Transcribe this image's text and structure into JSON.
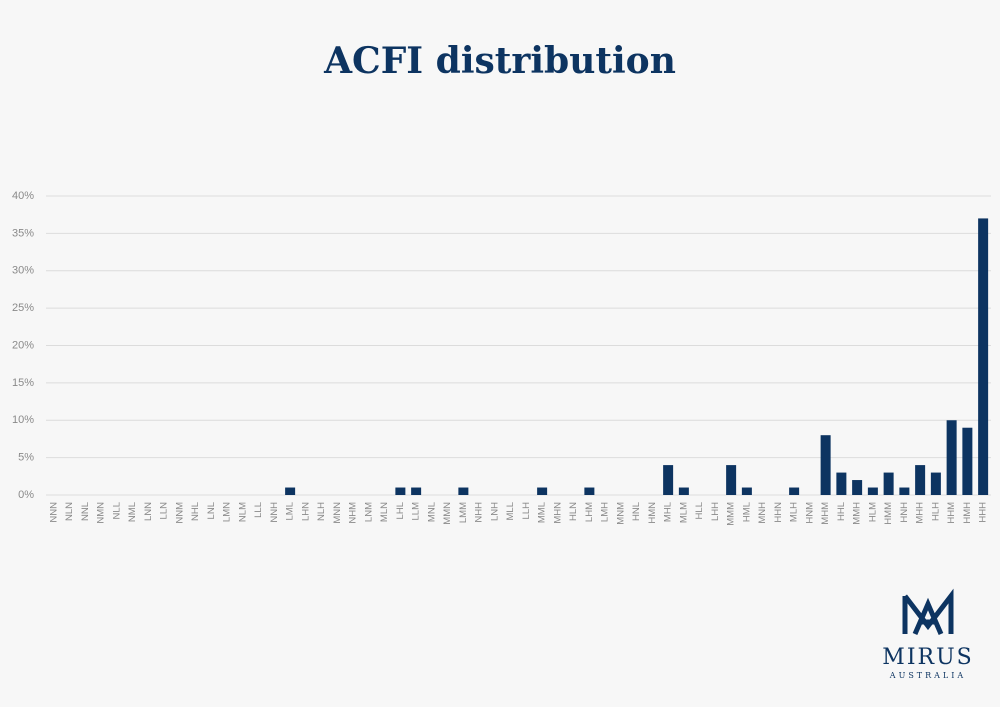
{
  "chart_data": {
    "type": "bar",
    "title": "ACFI distribution",
    "categories": [
      "NNN",
      "NLN",
      "NNL",
      "NMN",
      "NLL",
      "NML",
      "LNN",
      "LLN",
      "NNM",
      "NHL",
      "LNL",
      "LMN",
      "NLM",
      "LLL",
      "NNH",
      "LML",
      "LHN",
      "NLH",
      "MNN",
      "NHM",
      "LNM",
      "MLN",
      "LHL",
      "LLM",
      "MNL",
      "MMN",
      "LMM",
      "NHH",
      "LNH",
      "MLL",
      "LLH",
      "MML",
      "MHN",
      "HLN",
      "LHM",
      "LMH",
      "MNM",
      "HNL",
      "HMN",
      "MHL",
      "MLM",
      "HLL",
      "LHH",
      "MMM",
      "HML",
      "MNH",
      "HHN",
      "MLH",
      "HNM",
      "MHM",
      "HHL",
      "MMH",
      "HLM",
      "HMM",
      "HNH",
      "MHH",
      "HLH",
      "HHM",
      "HMH",
      "HHH"
    ],
    "values": [
      0,
      0,
      0,
      0,
      0,
      0,
      0,
      0,
      0,
      0,
      0,
      0,
      0,
      0,
      0,
      1,
      0,
      0,
      0,
      0,
      0,
      0,
      1,
      1,
      0,
      0,
      1,
      0,
      0,
      0,
      0,
      1,
      0,
      0,
      1,
      0,
      0,
      0,
      0,
      4,
      1,
      0,
      0,
      4,
      1,
      0,
      0,
      1,
      0,
      8,
      3,
      2,
      1,
      3,
      1,
      4,
      3,
      10,
      9,
      37
    ],
    "color": "#0d3461",
    "ylim": [
      0,
      40
    ],
    "yticks": [
      {
        "value": 0,
        "label": "0%"
      },
      {
        "value": 5,
        "label": "5%"
      },
      {
        "value": 10,
        "label": "10%"
      },
      {
        "value": 15,
        "label": "15%"
      },
      {
        "value": 20,
        "label": "20%"
      },
      {
        "value": 25,
        "label": "25%"
      },
      {
        "value": 30,
        "label": "30%"
      },
      {
        "value": 35,
        "label": "35%"
      },
      {
        "value": 40,
        "label": "40%"
      }
    ],
    "grid": true
  },
  "logo": {
    "name": "MIRUS",
    "subtitle": "AUSTRALIA"
  }
}
